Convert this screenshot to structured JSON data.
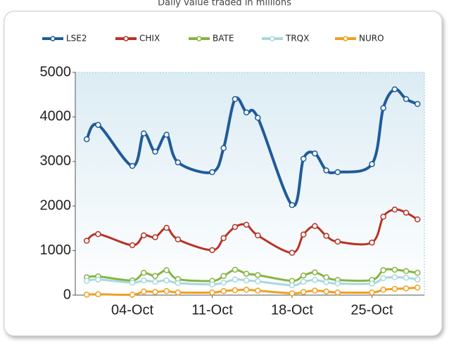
{
  "chart_data": {
    "type": "line",
    "title": "Daily value traded in millions",
    "x": [
      0,
      1,
      4,
      5,
      6,
      7,
      8,
      11,
      12,
      13,
      14,
      15,
      18,
      19,
      20,
      21,
      22,
      25,
      26,
      27,
      28,
      29
    ],
    "xlim": [
      -1,
      29.6
    ],
    "xticks": [
      {
        "value": 4,
        "label": "04-Oct"
      },
      {
        "value": 11,
        "label": "11-Oct"
      },
      {
        "value": 18,
        "label": "18-Oct"
      },
      {
        "value": 25,
        "label": "25-Oct"
      }
    ],
    "ylim": [
      0,
      5000
    ],
    "yticks": [
      0,
      1000,
      2000,
      3000,
      4000,
      5000
    ],
    "legend": "top",
    "series": [
      {
        "name": "LSE2",
        "color": "#1f5b99",
        "values": [
          3500,
          3820,
          2900,
          3630,
          3220,
          3600,
          2980,
          2760,
          3300,
          4400,
          4100,
          3980,
          2020,
          3060,
          3180,
          2800,
          2760,
          2940,
          4200,
          4620,
          4400,
          4290
        ]
      },
      {
        "name": "CHIX",
        "color": "#b83224",
        "values": [
          1220,
          1370,
          1120,
          1340,
          1300,
          1510,
          1250,
          1010,
          1280,
          1530,
          1580,
          1340,
          950,
          1360,
          1550,
          1330,
          1200,
          1180,
          1760,
          1920,
          1850,
          1700
        ]
      },
      {
        "name": "BATE",
        "color": "#86b443",
        "values": [
          400,
          420,
          330,
          500,
          430,
          560,
          360,
          320,
          430,
          570,
          480,
          450,
          320,
          440,
          510,
          400,
          340,
          340,
          560,
          570,
          540,
          500
        ]
      },
      {
        "name": "TRQX",
        "color": "#a9d8de",
        "values": [
          320,
          350,
          280,
          330,
          300,
          330,
          270,
          240,
          280,
          350,
          330,
          310,
          220,
          300,
          340,
          290,
          260,
          260,
          380,
          400,
          390,
          350
        ]
      },
      {
        "name": "NURO",
        "color": "#f0a020",
        "values": [
          10,
          20,
          10,
          80,
          70,
          90,
          60,
          60,
          90,
          110,
          120,
          100,
          40,
          70,
          100,
          80,
          60,
          60,
          120,
          140,
          150,
          170
        ]
      }
    ]
  }
}
